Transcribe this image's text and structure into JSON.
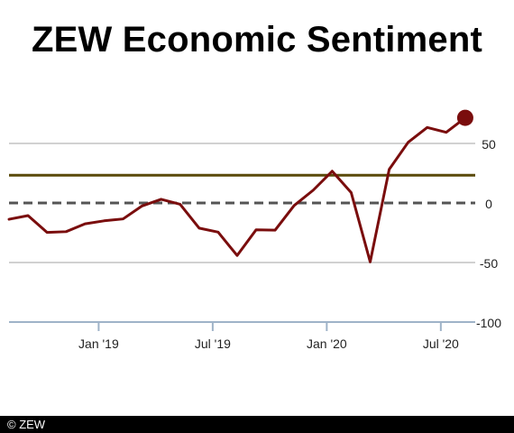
{
  "header": {
    "title": "ZEW Economic Sentiment"
  },
  "footer": {
    "credit": "© ZEW"
  },
  "chart_data": {
    "type": "line",
    "title": "ZEW Economic Sentiment",
    "xlabel": "",
    "ylabel": "",
    "ylim": [
      -100,
      100
    ],
    "y_ticks": [
      50,
      0,
      -50,
      -100
    ],
    "x_tick_labels": [
      "Jan '19",
      "Jul '19",
      "Jan '20",
      "Jul '20"
    ],
    "grid": true,
    "series": [
      {
        "color": "#7a0d0d",
        "x": [
          "2018-08",
          "2018-09",
          "2018-10",
          "2018-11",
          "2018-12",
          "2019-01",
          "2019-02",
          "2019-03",
          "2019-04",
          "2019-05",
          "2019-06",
          "2019-07",
          "2019-08",
          "2019-09",
          "2019-10",
          "2019-11",
          "2019-12",
          "2020-01",
          "2020-02",
          "2020-03",
          "2020-04",
          "2020-05",
          "2020-06",
          "2020-07",
          "2020-08"
        ],
        "values": [
          -13.7,
          -10.6,
          -24.7,
          -24.1,
          -17.5,
          -15.0,
          -13.4,
          -2.5,
          3.1,
          -1.1,
          -21.1,
          -24.5,
          -44.1,
          -22.5,
          -22.8,
          -2.1,
          10.7,
          26.7,
          8.7,
          -49.5,
          28.2,
          51.0,
          63.4,
          59.3,
          71.5
        ]
      }
    ],
    "reference_lines": [
      {
        "value": 0,
        "style": "dashed",
        "color": "#555555"
      },
      {
        "value": 23.3,
        "style": "solid",
        "color": "#5a4a0a"
      }
    ],
    "last_point_marker": true
  }
}
